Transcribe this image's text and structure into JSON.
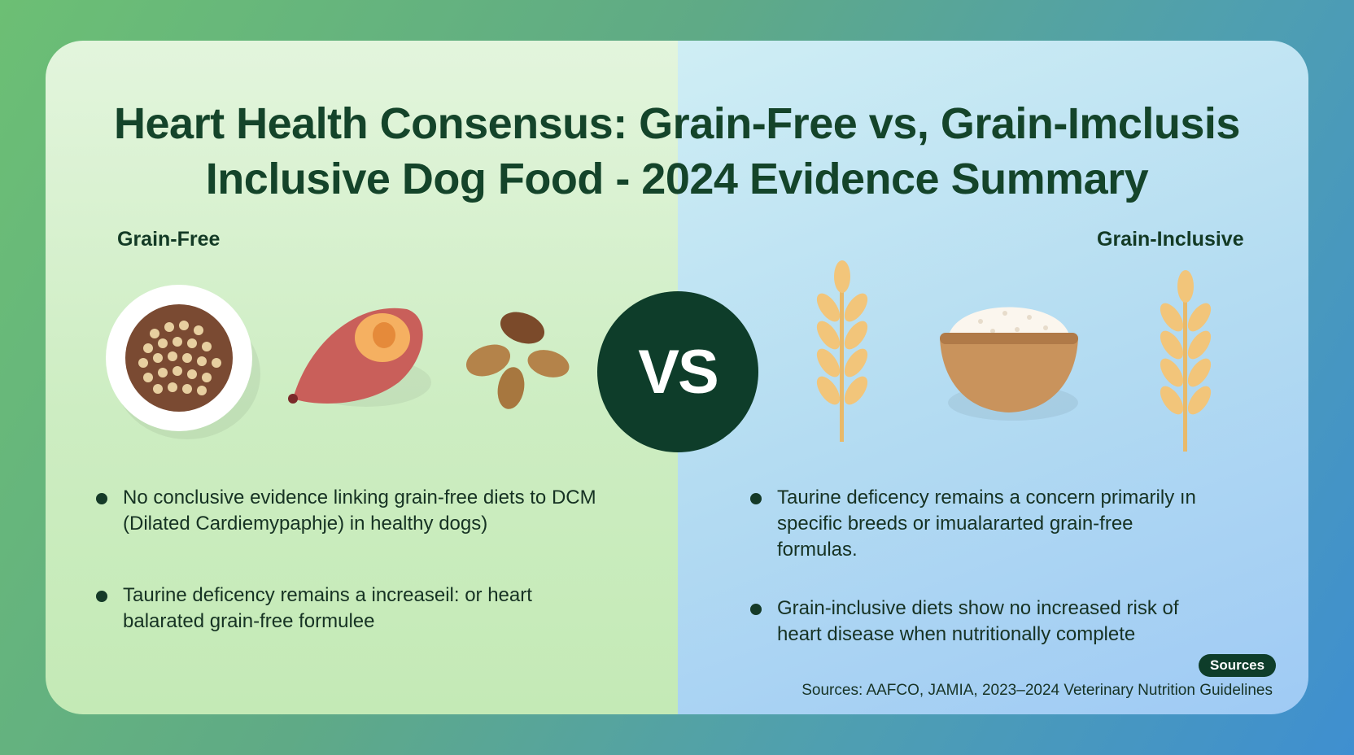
{
  "title_line1": "Heart Health Consensus: Grain-Free vs, Grain-Imclusis",
  "title_line2": "Inclusive Dog Food - 2024 Evidence Summary",
  "left": {
    "label": "Grain-Free",
    "bullets": [
      "No conclusive evidence linking grain-free diets to DCM (Dilated Cardiemypaphje) in healthy dogs)",
      "Taurine deficency remains a increaseil: or heart balarated grain-free formulee"
    ],
    "illustrations": [
      "grain-bowl-icon",
      "sweet-potato-icon",
      "legumes-icon"
    ]
  },
  "vs_label": "VS",
  "right": {
    "label": "Grain-Inclusive",
    "bullets": [
      "Taurine deficency remains a concern primarily ın specific breeds or imualararted grain-free formulas.",
      "Grain-inclusive diets show no increased risk of heart disease when nutritionally complete"
    ],
    "illustrations": [
      "wheat-icon",
      "rice-bowl-icon",
      "wheat-icon"
    ]
  },
  "sources_badge": "Sources",
  "sources_text": "Sources: AAFCO, JAMIA, 2023–2024 Veterinary Nutrition Guidelines",
  "colors": {
    "title": "#14442a",
    "vs_circle": "#0e3d2a",
    "left_panel": "#d4efca",
    "right_panel": "#b4dcf2"
  }
}
